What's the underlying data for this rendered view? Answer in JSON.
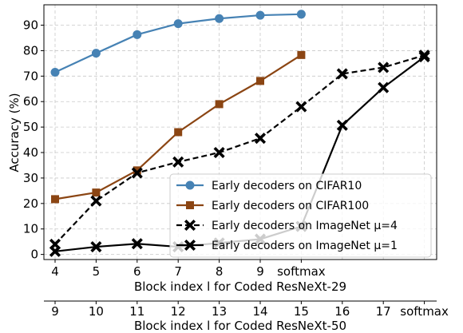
{
  "chart_data": {
    "type": "line",
    "ylabel": "Accuracy (%)",
    "ylim": [
      -2,
      98
    ],
    "yticks": [
      0,
      10,
      20,
      30,
      40,
      50,
      60,
      70,
      80,
      90
    ],
    "grid": true,
    "legend_position": "lower-right",
    "x_axes": [
      {
        "label": "Block index l for Coded ResNeXt-29",
        "ticks": [
          "4",
          "5",
          "6",
          "7",
          "8",
          "9",
          "softmax"
        ]
      },
      {
        "label": "Block index l for Coded ResNeXt-50",
        "ticks": [
          "9",
          "10",
          "11",
          "12",
          "13",
          "14",
          "15",
          "16",
          "17",
          "softmax"
        ]
      }
    ],
    "series": [
      {
        "name": "Early decoders on CIFAR10",
        "axis": "ResNeXt-29",
        "color": "#4682b4",
        "marker": "circle",
        "dash": "solid",
        "x": [
          "4",
          "5",
          "6",
          "7",
          "8",
          "9",
          "softmax"
        ],
        "values": [
          71.5,
          79,
          86.3,
          90.6,
          92.6,
          93.9,
          94.3
        ]
      },
      {
        "name": "Early decoders on CIFAR100",
        "axis": "ResNeXt-29",
        "color": "#8b4513",
        "marker": "square",
        "dash": "solid",
        "x": [
          "4",
          "5",
          "6",
          "7",
          "8",
          "9",
          "softmax"
        ],
        "values": [
          21.7,
          24.3,
          33,
          48,
          59,
          68.1,
          78.3
        ]
      },
      {
        "name": "Early decoders on ImageNet μ=4",
        "axis": "ResNeXt-50",
        "color": "#000000",
        "marker": "x",
        "dash": "dashed",
        "x": [
          "9",
          "10",
          "11",
          "12",
          "13",
          "14",
          "15",
          "16",
          "17",
          "softmax"
        ],
        "values": [
          4,
          21,
          32,
          36.3,
          40,
          45.6,
          58,
          70.9,
          73.4,
          78.2
        ]
      },
      {
        "name": "Early decoders on ImageNet μ=1",
        "axis": "ResNeXt-50",
        "color": "#000000",
        "marker": "x",
        "dash": "solid",
        "x": [
          "9",
          "10",
          "11",
          "12",
          "13",
          "14",
          "15",
          "16",
          "17",
          "softmax"
        ],
        "values": [
          1.2,
          3,
          4.2,
          3,
          4.5,
          6,
          11,
          50.7,
          65.5,
          77.6
        ]
      }
    ]
  }
}
